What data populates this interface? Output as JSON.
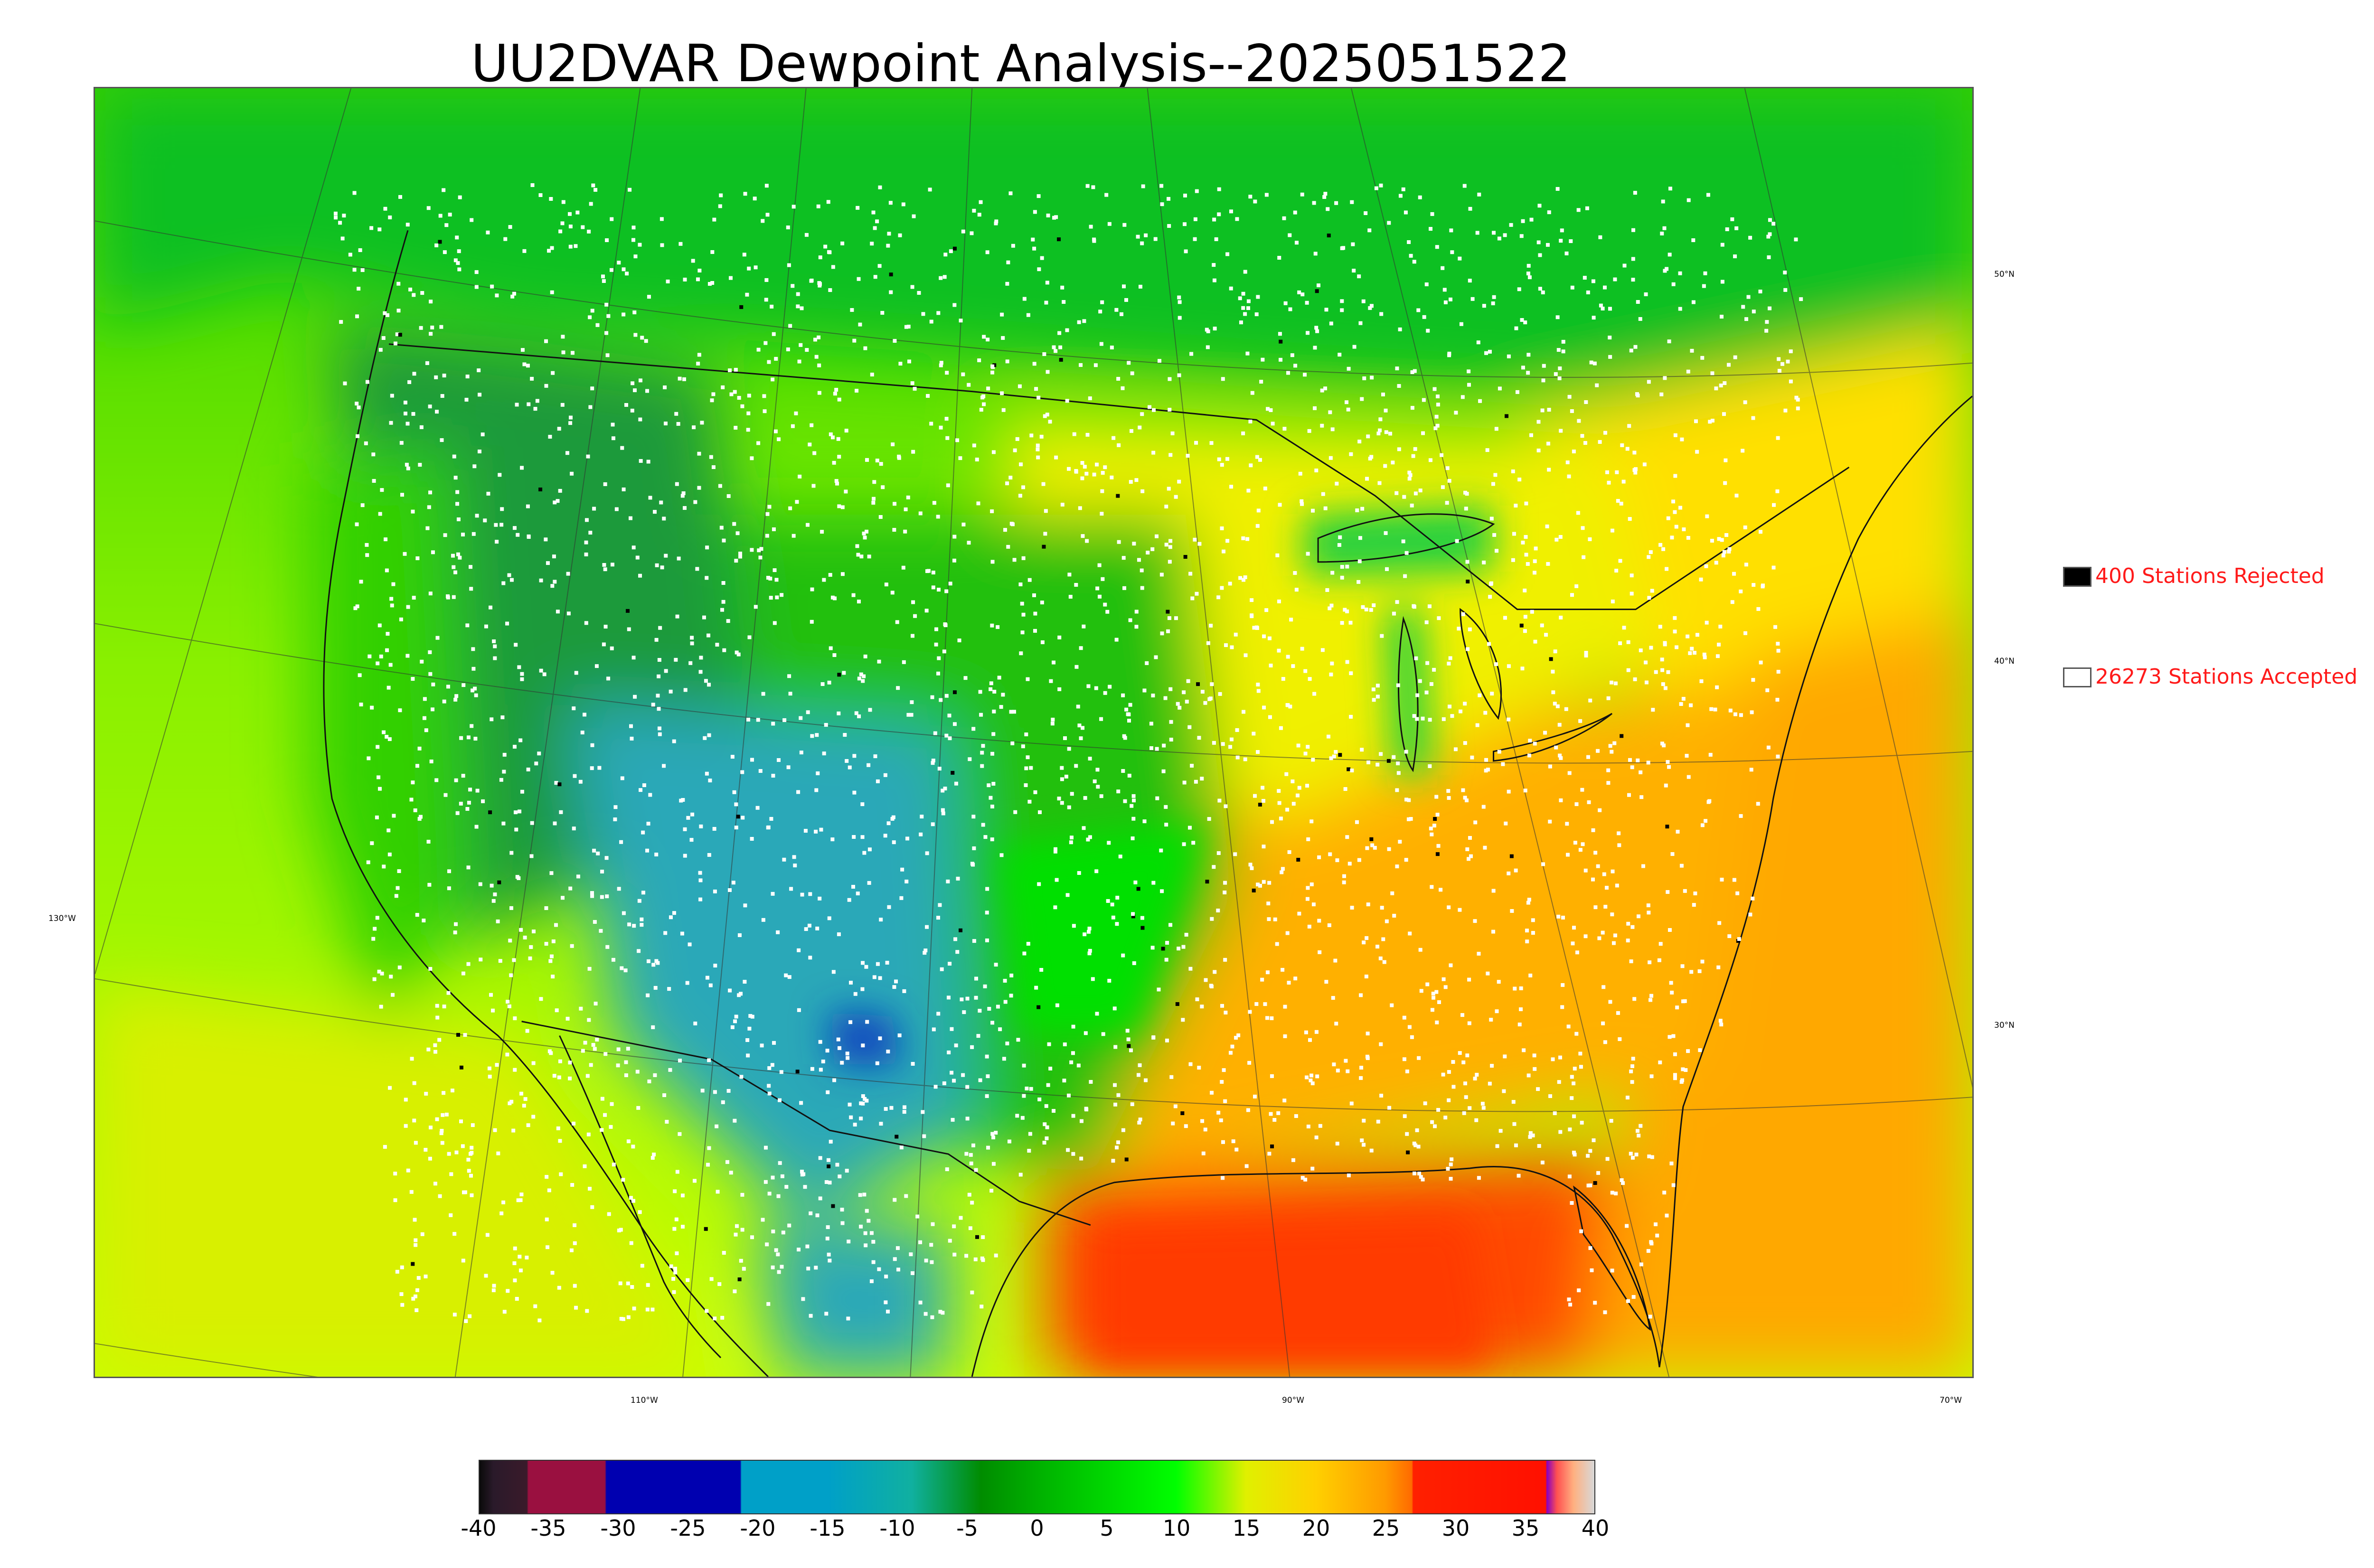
{
  "title": "UU2DVAR Dewpoint Analysis--2025051522",
  "legend": {
    "rejected": {
      "label": "400 Stations Rejected",
      "swatch_color": "#000000"
    },
    "accepted": {
      "label": "26273 Stations Accepted",
      "swatch_color": "#ffffff"
    }
  },
  "latitude_labels": [
    "50°N",
    "40°N",
    "30°N"
  ],
  "longitude_labels": [
    "130°W",
    "110°W",
    "90°W",
    "70°W"
  ],
  "colorbar": {
    "ticks": [
      "-40",
      "-35",
      "-30",
      "-25",
      "-20",
      "-15",
      "-10",
      "-5",
      "0",
      "5",
      "10",
      "15",
      "20",
      "25",
      "30",
      "35",
      "40"
    ],
    "range": [
      -40,
      40
    ],
    "stops": [
      {
        "value": -40,
        "color": "#0a0a0a"
      },
      {
        "value": -39,
        "color": "#2a1a2a"
      },
      {
        "value": -36.6,
        "color": "#3a1a2a"
      },
      {
        "value": -36.5,
        "color": "#9a1040"
      },
      {
        "value": -31,
        "color": "#9a1040"
      },
      {
        "value": -30.9,
        "color": "#0000b0"
      },
      {
        "value": -21.3,
        "color": "#0000b0"
      },
      {
        "value": -21.2,
        "color": "#00a0c8"
      },
      {
        "value": -15,
        "color": "#00a0c8"
      },
      {
        "value": -9,
        "color": "#10b0a0"
      },
      {
        "value": -4,
        "color": "#008c00"
      },
      {
        "value": 0,
        "color": "#00b000"
      },
      {
        "value": 10,
        "color": "#00ff00"
      },
      {
        "value": 15,
        "color": "#e0f000"
      },
      {
        "value": 20,
        "color": "#ffd000"
      },
      {
        "value": 25,
        "color": "#ff9a00"
      },
      {
        "value": 26.9,
        "color": "#ff6a00"
      },
      {
        "value": 27,
        "color": "#ff2000"
      },
      {
        "value": 36.5,
        "color": "#ff1000"
      },
      {
        "value": 36.6,
        "color": "#8a00c0"
      },
      {
        "value": 37.3,
        "color": "#ff5050"
      },
      {
        "value": 38.5,
        "color": "#ffb080"
      },
      {
        "value": 40,
        "color": "#d8d8d8"
      }
    ]
  },
  "map_colors": {
    "ocean_pacific_south": "#c8ff00",
    "ocean_pacific_north": "#30d000",
    "canada": "#10c020",
    "west_highlands": "#1a9a3a",
    "dry_southwest": "#2aa8b8",
    "very_dry": "#1040c0",
    "plains": "#20c010",
    "midwest": "#f0f000",
    "southeast": "#ffb000",
    "gulf": "#ff4a00",
    "atlantic_south": "#ffa800",
    "atlantic_north": "#ffe000",
    "great_lakes": "#20d040",
    "station_accepted": "#ffffff",
    "station_rejected": "#000000"
  }
}
